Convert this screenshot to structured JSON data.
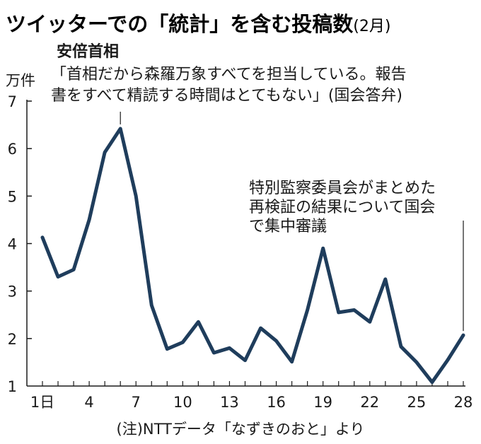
{
  "title": {
    "main": "ツイッターでの「統計」を含む投稿数",
    "period": "(2月)"
  },
  "colors": {
    "line": "#1f3d5c",
    "axis": "#1a1a1a",
    "text": "#1a1a1a",
    "background": "#ffffff"
  },
  "chart_data": {
    "type": "line",
    "title": "ツイッターでの「統計」を含む投稿数(2月)",
    "ylabel": "万件",
    "xlabel": "",
    "x": [
      1,
      2,
      3,
      4,
      5,
      6,
      7,
      8,
      9,
      10,
      11,
      12,
      13,
      14,
      15,
      16,
      17,
      18,
      19,
      20,
      21,
      22,
      23,
      24,
      25,
      26,
      27,
      28
    ],
    "series": [
      {
        "name": "投稿数",
        "values": [
          4.13,
          3.3,
          3.45,
          4.5,
          5.92,
          6.42,
          5.0,
          2.7,
          1.78,
          1.92,
          2.35,
          1.7,
          1.8,
          1.54,
          2.22,
          1.95,
          1.51,
          2.6,
          3.9,
          2.55,
          2.6,
          2.35,
          3.25,
          1.83,
          1.5,
          1.08,
          1.55,
          2.07
        ]
      }
    ],
    "ylim": [
      1,
      7
    ],
    "yticks": [
      "1",
      "2",
      "3",
      "4",
      "5",
      "6",
      "7"
    ],
    "xtick_values": [
      1,
      4,
      7,
      10,
      13,
      16,
      19,
      22,
      25,
      28
    ],
    "xtick_labels": [
      "1日",
      "4",
      "7",
      "10",
      "13",
      "16",
      "19",
      "22",
      "25",
      "28"
    ],
    "annotations": [
      {
        "x": 6,
        "heading": "安倍首相",
        "lines": [
          "「首相だから森羅万象すべてを担当している。報告",
          "書をすべて精読する時間はとてもない」(国会答弁)"
        ]
      },
      {
        "x": 28,
        "heading": "",
        "lines": [
          "特別監察委員会がまとめた",
          "再検証の結果について国会",
          "で集中審議"
        ]
      }
    ],
    "grid": false
  },
  "note": "(注)NTTデータ「なずきのおと」より"
}
